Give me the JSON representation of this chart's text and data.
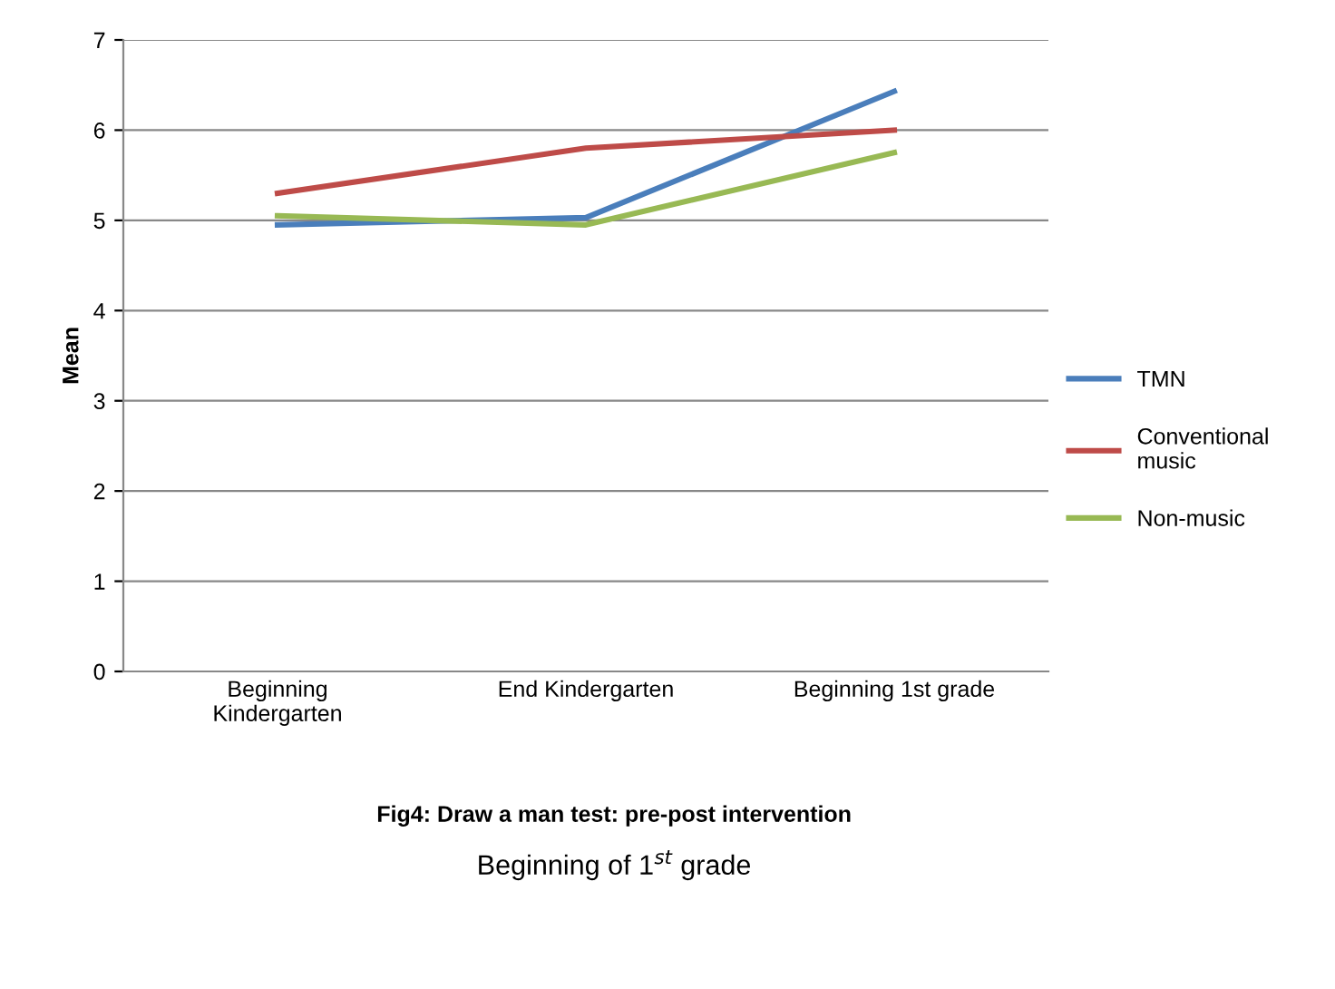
{
  "chart_data": {
    "type": "line",
    "ylabel": "Mean",
    "categories": [
      "Beginning\nKindergarten",
      "End Kindergarten",
      "Beginning 1st grade"
    ],
    "series": [
      {
        "name": "TMN",
        "color": "#4a7ebb",
        "values": [
          4.95,
          5.03,
          6.43
        ]
      },
      {
        "name": "Conventional\nmusic",
        "color": "#be4b48",
        "values": [
          5.3,
          5.8,
          6.0
        ]
      },
      {
        "name": "Non-music",
        "color": "#98b954",
        "values": [
          5.05,
          4.95,
          5.75
        ]
      }
    ],
    "ylim": [
      0,
      7
    ],
    "yticks": [
      0,
      1,
      2,
      3,
      4,
      5,
      6,
      7
    ],
    "grid": "y",
    "legend": "right",
    "marker": "none",
    "line_style": "solid",
    "annotations": [
      "Fig4: Draw a man test: pre-post intervention",
      "Beginning of 1$^{st}$ grade"
    ]
  }
}
